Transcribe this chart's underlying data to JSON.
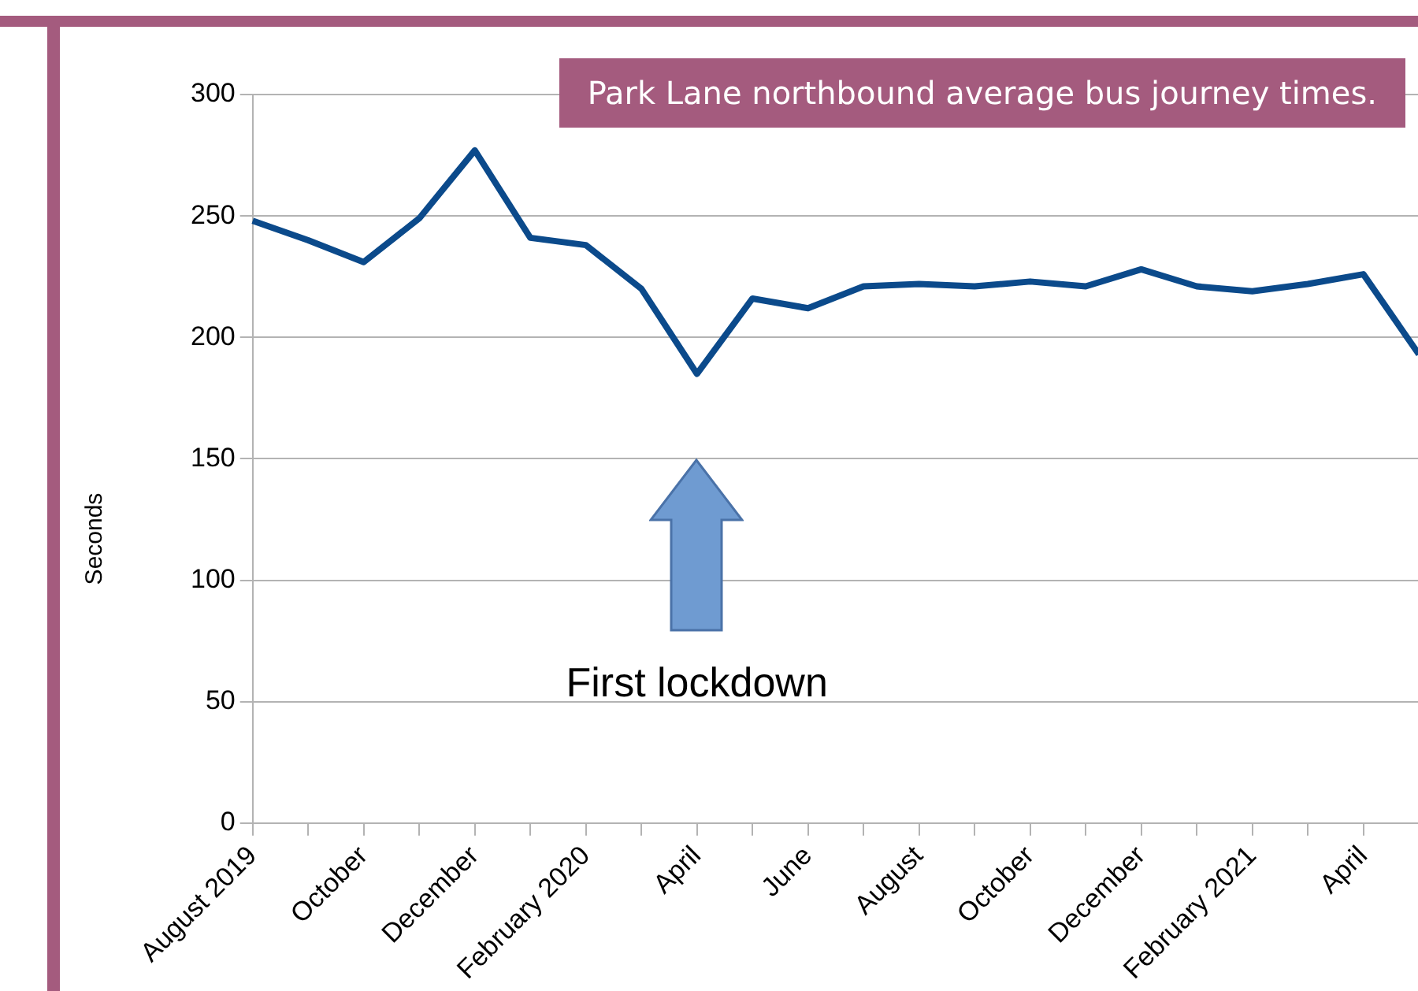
{
  "chart_data": {
    "type": "line",
    "title": "Park Lane northbound average bus journey times.",
    "ylabel": "Seconds",
    "categories": [
      "August 2019",
      null,
      "October",
      null,
      "December",
      null,
      "February 2020",
      null,
      "April",
      null,
      "June",
      null,
      "August",
      null,
      "October",
      null,
      "December",
      null,
      "February 2021",
      null,
      "April",
      null
    ],
    "series": [
      {
        "color": "#0b4a8b",
        "values": [
          248,
          240,
          231,
          249,
          277,
          241,
          238,
          220,
          185,
          216,
          212,
          221,
          222,
          221,
          223,
          221,
          228,
          221,
          219,
          222,
          226,
          193
        ]
      }
    ],
    "ylim": [
      0,
      300
    ],
    "yticks": [
      0,
      50,
      100,
      150,
      200,
      250,
      300
    ],
    "grid": "y",
    "legend": false,
    "marker": "none",
    "line_style": "solid",
    "annotations": [
      "First lockdown"
    ]
  }
}
